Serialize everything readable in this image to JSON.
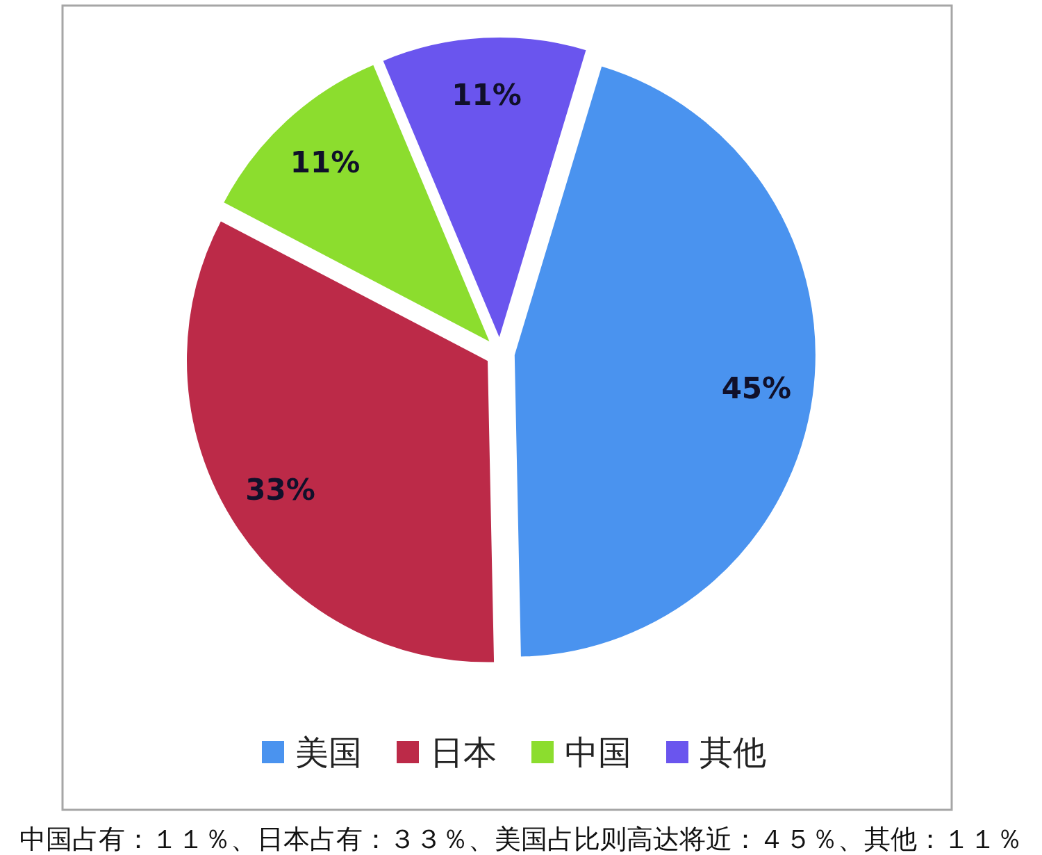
{
  "chart_data": {
    "type": "pie",
    "categories": [
      "美国",
      "日本",
      "中国",
      "其他"
    ],
    "values": [
      45,
      33,
      11,
      11
    ],
    "colors": [
      "#4a93ef",
      "#bc2a48",
      "#8cdd2e",
      "#6a55ee"
    ],
    "value_labels": [
      "45%",
      "33%",
      "11%",
      "11%"
    ],
    "legend": "bottom",
    "annotations": [
      "中国占有：１１％、日本占有：３３％、美国占比则高达将近：４５％、其他：１１％"
    ]
  }
}
